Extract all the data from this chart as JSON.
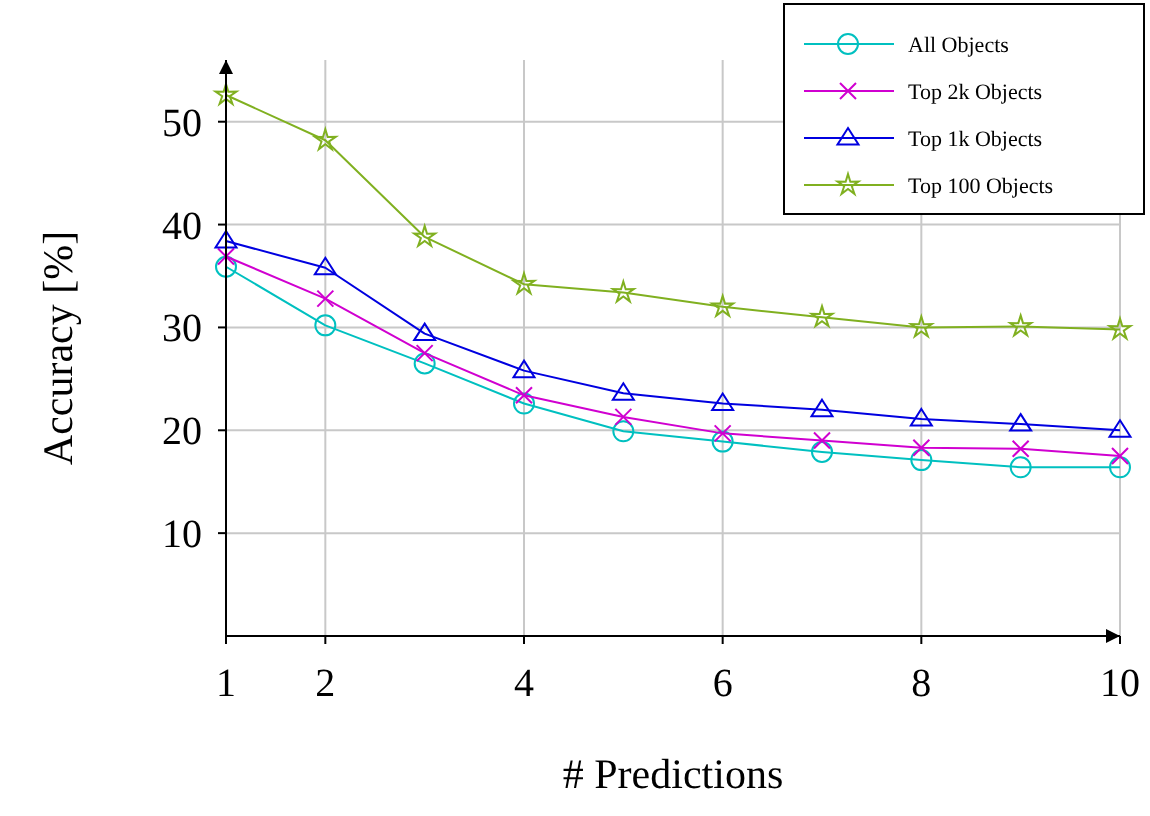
{
  "chart_data": {
    "type": "line",
    "xlabel": "# Predictions",
    "ylabel": "Accuracy [%]",
    "x": [
      1,
      2,
      3,
      4,
      5,
      6,
      7,
      8,
      9,
      10
    ],
    "xlim": [
      1,
      10
    ],
    "xticks": [
      1,
      2,
      4,
      6,
      8,
      10
    ],
    "ylim": [
      0,
      56
    ],
    "yticks": [
      10,
      20,
      30,
      40,
      50
    ],
    "grid": true,
    "legend": "top right",
    "line_style": "solid",
    "series": [
      {
        "name": "All Objects",
        "color": "#00c0c0",
        "marker": "circle",
        "values": [
          35.9,
          30.2,
          26.5,
          22.6,
          19.9,
          18.9,
          17.9,
          17.1,
          16.4,
          16.4
        ]
      },
      {
        "name": "Top 2k Objects",
        "color": "#d000d0",
        "marker": "cross",
        "values": [
          36.9,
          32.8,
          27.5,
          23.4,
          21.3,
          19.7,
          19.0,
          18.3,
          18.2,
          17.5
        ]
      },
      {
        "name": "Top 1k Objects",
        "color": "#0000e0",
        "marker": "triangle",
        "values": [
          38.4,
          35.8,
          29.4,
          25.8,
          23.6,
          22.6,
          22.0,
          21.1,
          20.6,
          20.0
        ]
      },
      {
        "name": "Top 100 Objects",
        "color": "#80b020",
        "marker": "star",
        "values": [
          52.6,
          48.2,
          38.8,
          34.2,
          33.4,
          32.0,
          31.0,
          30.0,
          30.1,
          29.8
        ]
      }
    ]
  }
}
